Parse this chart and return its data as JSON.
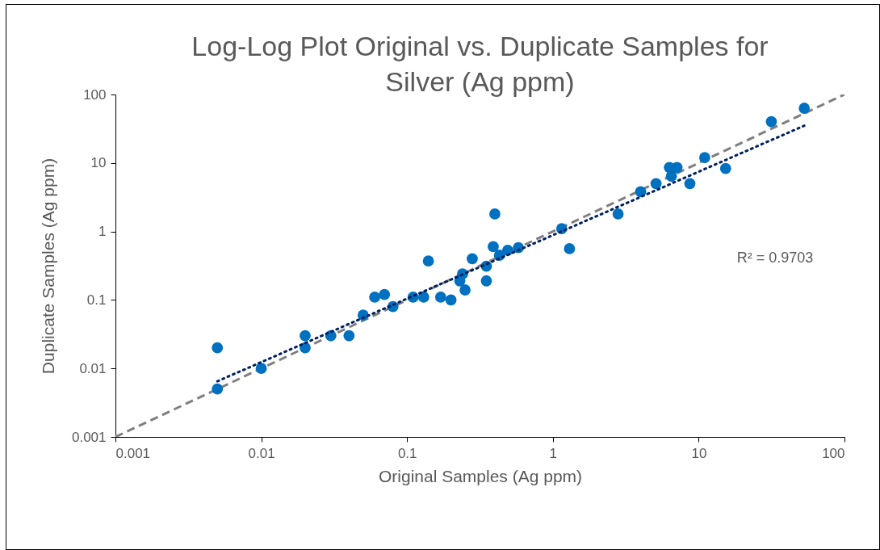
{
  "chart_data": {
    "type": "scatter",
    "title": "Log-Log Plot Original vs. Duplicate Samples for Silver (Ag ppm)",
    "xlabel": "Original Samples (Ag ppm)",
    "ylabel": "Duplicate Samples (Ag ppm)",
    "log": "xy",
    "grid": false,
    "marker": "circle",
    "xlim": [
      0.001,
      100
    ],
    "ylim": [
      0.001,
      100
    ],
    "xticks": [
      0.001,
      0.01,
      0.1,
      1,
      10,
      100
    ],
    "yticks": [
      0.001,
      0.01,
      0.1,
      1,
      10,
      100
    ],
    "annotations": [
      "R² = 0.9703"
    ],
    "series": [
      {
        "type": "line",
        "marker": "none",
        "line_style": "dashed",
        "color": "#7f7f7f",
        "x": [
          0.001,
          100
        ],
        "values": [
          0.001,
          100
        ]
      },
      {
        "color": "#0070c0",
        "x": [
          0.005,
          0.005,
          0.01,
          0.02,
          0.02,
          0.03,
          0.04,
          0.05,
          0.06,
          0.07,
          0.08,
          0.11,
          0.13,
          0.14,
          0.17,
          0.2,
          0.23,
          0.24,
          0.25,
          0.28,
          0.35,
          0.35,
          0.39,
          0.4,
          0.43,
          0.49,
          0.58,
          1.15,
          1.3,
          2.8,
          4,
          5.1,
          6.3,
          7.1,
          6.5,
          8.7,
          11,
          15.3,
          31.5,
          53
        ],
        "values": [
          0.005,
          0.02,
          0.01,
          0.03,
          0.02,
          0.03,
          0.03,
          0.06,
          0.11,
          0.12,
          0.08,
          0.11,
          0.11,
          0.37,
          0.11,
          0.1,
          0.19,
          0.24,
          0.14,
          0.4,
          0.31,
          0.19,
          0.6,
          1.8,
          0.45,
          0.53,
          0.58,
          1.1,
          0.56,
          1.8,
          3.8,
          5,
          8.6,
          8.6,
          6.4,
          5,
          12,
          8.3,
          40,
          63
        ]
      },
      {
        "type": "line",
        "marker": "none",
        "line_style": "dotted",
        "color": "#002060",
        "x": [
          0.005,
          53
        ],
        "values": [
          0.0065,
          35
        ]
      }
    ]
  }
}
